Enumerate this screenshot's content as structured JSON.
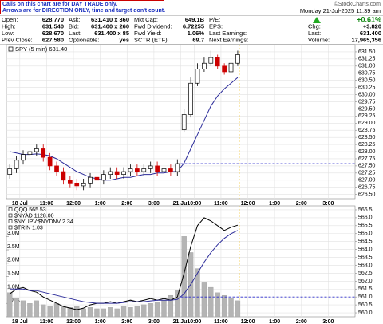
{
  "header": {
    "notice": [
      "Calls on this chart are for DAY TRADE only.",
      "Arrows are for DIRECTION ONLY, time and target don't count."
    ],
    "logo": "©StockCharts.com",
    "datetime": "Monday 21-Jul-2025 11:39 am",
    "change_pct": "+0.61%",
    "columns": [
      {
        "labels": [
          "Open:",
          "High:",
          "Low:",
          "Prev Close:"
        ],
        "values": [
          "628.770",
          "631.540",
          "628.670",
          "627.580"
        ]
      },
      {
        "labels": [
          "Ask:",
          "Bid:",
          "Last:",
          "Optionable:"
        ],
        "values": [
          "631.410 x 360",
          "631.400 x 260",
          "631.400 x 85",
          "yes"
        ]
      },
      {
        "labels": [
          "Mkt Cap:",
          "Fwd Dividend:",
          "Fwd Yield:",
          "SCTR (ETF):"
        ],
        "values": [
          "649.1B",
          "6.72255",
          "1.06%",
          "69.7"
        ]
      },
      {
        "labels": [
          "P/E:",
          "EPS:",
          "Last Earnings:",
          "Next Earnings:"
        ]
      },
      {
        "labels": [
          "Chg:",
          "Last:",
          "Volume:"
        ],
        "values": [
          "+3.820",
          "631.400",
          "17,965,356"
        ]
      }
    ]
  },
  "chart_data": [
    {
      "type": "candlestick",
      "legend": "SPY (5 min) 631.40",
      "up_color": "#000000",
      "down_color": "#cc0000",
      "x": [
        0.125,
        0.375,
        0.625,
        0.875,
        1.125,
        1.375,
        1.625,
        1.875,
        2.125,
        2.375,
        2.625,
        2.875,
        3.125,
        3.375,
        3.625,
        3.875,
        4.125,
        4.375,
        4.625,
        4.875,
        5.125,
        5.375,
        5.625,
        5.875,
        6.125,
        6.375,
        6.625,
        6.875,
        7.125,
        7.375,
        7.625,
        7.875,
        8.125,
        8.375,
        8.625
      ],
      "open": [
        627.2,
        627.4,
        627.7,
        627.9,
        628.0,
        628.1,
        627.8,
        627.5,
        627.3,
        627.0,
        626.9,
        626.8,
        626.9,
        627.1,
        627.0,
        627.2,
        627.3,
        627.2,
        627.3,
        627.4,
        627.3,
        627.4,
        627.5,
        627.3,
        627.4,
        627.3,
        628.77,
        629.3,
        630.4,
        630.9,
        631.1,
        631.3,
        631.0,
        630.8,
        631.1
      ],
      "high": [
        627.55,
        627.85,
        628.05,
        628.15,
        628.25,
        628.25,
        627.95,
        627.65,
        627.45,
        627.15,
        627.05,
        627.05,
        627.25,
        627.25,
        627.35,
        627.45,
        627.45,
        627.45,
        627.55,
        627.55,
        627.55,
        627.65,
        627.65,
        627.55,
        627.55,
        627.73,
        629.5,
        630.6,
        631.1,
        631.3,
        631.54,
        631.4,
        631.1,
        631.25,
        631.54
      ],
      "low": [
        627.05,
        627.25,
        627.55,
        627.75,
        627.85,
        627.65,
        627.35,
        627.15,
        626.85,
        626.75,
        626.65,
        626.65,
        626.75,
        626.85,
        626.85,
        627.05,
        627.05,
        627.05,
        627.15,
        627.15,
        627.15,
        627.25,
        627.15,
        627.15,
        627.15,
        627.15,
        628.67,
        629.2,
        630.3,
        630.8,
        631.0,
        630.9,
        630.7,
        630.75,
        631.0
      ],
      "close": [
        627.4,
        627.7,
        627.9,
        628.0,
        628.1,
        627.8,
        627.5,
        627.3,
        627.0,
        626.9,
        626.8,
        626.9,
        627.1,
        627.0,
        627.2,
        627.3,
        627.2,
        627.3,
        627.4,
        627.3,
        627.4,
        627.5,
        627.3,
        627.4,
        627.3,
        627.58,
        629.3,
        630.4,
        630.9,
        631.1,
        631.3,
        631.0,
        630.8,
        631.1,
        631.4
      ],
      "lines": [
        {
          "color": "#2b2b9a",
          "values": [
            628.0,
            627.95,
            627.9,
            627.9,
            627.92,
            627.9,
            627.85,
            627.75,
            627.6,
            627.45,
            627.3,
            627.2,
            627.1,
            627.05,
            627.0,
            627.0,
            627.05,
            627.1,
            627.1,
            627.15,
            627.2,
            627.2,
            627.25,
            627.25,
            627.3,
            627.3,
            627.6,
            628.1,
            628.6,
            629.1,
            629.6,
            629.95,
            630.2,
            630.4,
            630.6
          ]
        }
      ],
      "xlim": [
        0,
        13
      ],
      "xticks": [
        {
          "value": 0.5,
          "label": "18 Jul"
        },
        {
          "value": 1.5,
          "label": "11:00"
        },
        {
          "value": 2.5,
          "label": "12:00"
        },
        {
          "value": 3.5,
          "label": "1:00"
        },
        {
          "value": 4.5,
          "label": "2:00"
        },
        {
          "value": 5.5,
          "label": "3:00"
        },
        {
          "value": 6.5,
          "label": "21 Jul"
        },
        {
          "value": 7.0,
          "label": "10:00"
        },
        {
          "value": 8.0,
          "label": "11:00"
        },
        {
          "value": 9.0,
          "label": "12:00"
        },
        {
          "value": 10.0,
          "label": "1:00"
        },
        {
          "value": 11.0,
          "label": "2:00"
        },
        {
          "value": 12.0,
          "label": "3:00"
        }
      ],
      "ylim": [
        626.35,
        631.75
      ],
      "yticks": [
        {
          "value": 631.5,
          "label": "631.50"
        },
        631.25,
        {
          "value": 631.0,
          "label": "631.00"
        },
        630.75,
        {
          "value": 630.5,
          "label": "630.50"
        },
        630.25,
        {
          "value": 630.0,
          "label": "630.00"
        },
        629.75,
        {
          "value": 629.5,
          "label": "629.50"
        },
        629.25,
        {
          "value": 629.0,
          "label": "629.00"
        },
        628.75,
        {
          "value": 628.5,
          "label": "628.50"
        },
        628.25,
        {
          "value": 628.0,
          "label": "628.00"
        },
        627.75,
        {
          "value": 627.5,
          "label": "627.50"
        },
        627.25,
        {
          "value": 627.0,
          "label": "627.00"
        },
        626.75,
        {
          "value": 626.5,
          "label": "626.50"
        }
      ],
      "grid": true
    },
    {
      "type": "line",
      "legend": [
        "QQQ 565.53",
        "$NYAD 1128.00",
        "$NYUPV:$NYDNV 2.34",
        "$TRIN 1.03"
      ],
      "x": [
        0.125,
        0.375,
        0.625,
        0.875,
        1.125,
        1.375,
        1.625,
        1.875,
        2.125,
        2.375,
        2.625,
        2.875,
        3.125,
        3.375,
        3.625,
        3.875,
        4.125,
        4.375,
        4.625,
        4.875,
        5.125,
        5.375,
        5.625,
        5.875,
        6.125,
        6.375,
        6.625,
        6.875,
        7.125,
        7.375,
        7.625,
        7.875,
        8.125,
        8.375,
        8.625
      ],
      "series": [
        {
          "kind": "bar",
          "axis": "y2",
          "color": "#b4b4b4",
          "values": [
            900000,
            700000,
            600000,
            500000,
            600000,
            450000,
            400000,
            500000,
            400000,
            350000,
            400000,
            300000,
            350000,
            300000,
            300000,
            350000,
            300000,
            400000,
            350000,
            400000,
            450000,
            500000,
            550000,
            600000,
            800000,
            1000000,
            3000000,
            2400000,
            1800000,
            1300000,
            1100000,
            900000,
            800000,
            700000,
            600000
          ]
        },
        {
          "kind": "line",
          "color": "#000000",
          "values": [
            561.2,
            561.5,
            561.6,
            561.4,
            561.3,
            561.0,
            560.8,
            560.6,
            560.4,
            560.3,
            560.2,
            560.3,
            560.5,
            560.6,
            560.6,
            560.7,
            560.6,
            560.7,
            560.8,
            560.7,
            560.8,
            560.9,
            560.8,
            560.9,
            560.8,
            561.0,
            562.5,
            564.2,
            565.5,
            566.0,
            565.8,
            565.5,
            565.2,
            565.4,
            565.53
          ]
        },
        {
          "kind": "line",
          "color": "#2b2b9a",
          "values": [
            561.5,
            561.5,
            561.5,
            561.4,
            561.4,
            561.3,
            561.2,
            561.1,
            561.0,
            560.9,
            560.8,
            560.7,
            560.65,
            560.6,
            560.6,
            560.6,
            560.6,
            560.65,
            560.7,
            560.7,
            560.7,
            560.75,
            560.8,
            560.8,
            560.8,
            560.85,
            561.2,
            561.8,
            562.5,
            563.2,
            563.8,
            564.3,
            564.7,
            565.0,
            565.2
          ]
        }
      ],
      "ref_value": 561.0,
      "xlim": [
        0,
        13
      ],
      "xticks": [
        {
          "value": 0.5,
          "label": "18 Jul"
        },
        {
          "value": 1.5,
          "label": "11:00"
        },
        {
          "value": 2.5,
          "label": "12:00"
        },
        {
          "value": 3.5,
          "label": "1:00"
        },
        {
          "value": 4.5,
          "label": "2:00"
        },
        {
          "value": 5.5,
          "label": "3:00"
        },
        {
          "value": 6.5,
          "label": "21 Jul"
        },
        {
          "value": 7.0,
          "label": "10:00"
        },
        {
          "value": 8.0,
          "label": "11:00"
        },
        {
          "value": 9.0,
          "label": "12:00"
        },
        {
          "value": 10.0,
          "label": "1:00"
        },
        {
          "value": 11.0,
          "label": "2:00"
        },
        {
          "value": 12.0,
          "label": "3:00"
        }
      ],
      "ylim": [
        559.75,
        566.75
      ],
      "yticks": [
        566.5,
        {
          "value": 566.0,
          "label": "566.0"
        },
        565.5,
        {
          "value": 565.0,
          "label": "565.0"
        },
        564.5,
        {
          "value": 564.0,
          "label": "564.0"
        },
        563.5,
        {
          "value": 563.0,
          "label": "563.0"
        },
        562.5,
        {
          "value": 562.0,
          "label": "562.0"
        },
        561.5,
        {
          "value": 561.0,
          "label": "561.0"
        },
        560.5,
        {
          "value": 560.0,
          "label": "560.0"
        }
      ],
      "y2lim": [
        0,
        4140000
      ],
      "y2ticks": [
        {
          "value": 3000000,
          "label": "3.0M"
        },
        {
          "value": 2500000,
          "label": "2.5M"
        },
        {
          "value": 2000000,
          "label": "2.0M"
        },
        {
          "value": 1500000,
          "label": "1.5M"
        },
        {
          "value": 1000000,
          "label": "1.0M"
        },
        {
          "value": 500000,
          "label": "500K"
        }
      ],
      "grid": true
    }
  ]
}
